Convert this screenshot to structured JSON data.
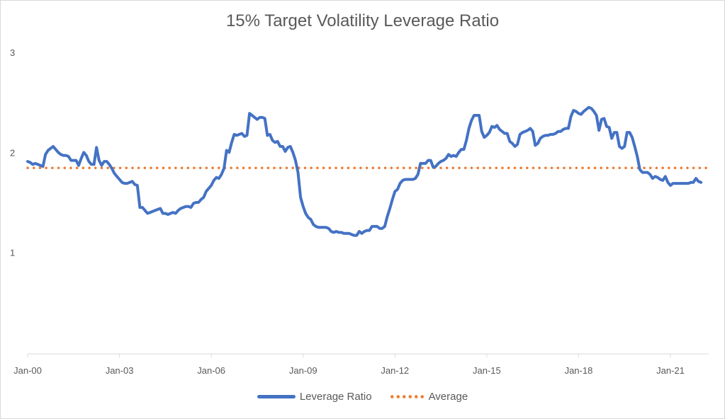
{
  "chart_data": {
    "type": "line",
    "title": "15% Target Volatility Leverage Ratio",
    "xlabel": "",
    "ylabel": "",
    "ylim": [
      0,
      3
    ],
    "yticks": [
      "1",
      "2",
      "3"
    ],
    "ytick_values": [
      1,
      2,
      3
    ],
    "x_unit": "months since Jan-00",
    "xlim": [
      0,
      267
    ],
    "xticks": [
      "Jan-00",
      "Jan-03",
      "Jan-06",
      "Jan-09",
      "Jan-12",
      "Jan-15",
      "Jan-18",
      "Jan-21"
    ],
    "xtick_values": [
      0,
      36,
      72,
      108,
      144,
      180,
      216,
      252
    ],
    "grid": false,
    "legend_position": "bottom",
    "series": [
      {
        "name": "Leverage Ratio",
        "color": "#4472c4",
        "style": "solid",
        "points": [
          [
            0,
            1.91
          ],
          [
            1,
            1.9
          ],
          [
            2,
            1.88
          ],
          [
            3,
            1.89
          ],
          [
            4,
            1.88
          ],
          [
            5,
            1.87
          ],
          [
            6,
            1.86
          ],
          [
            7,
            1.98
          ],
          [
            8,
            2.02
          ],
          [
            9,
            2.04
          ],
          [
            10,
            2.06
          ],
          [
            11,
            2.03
          ],
          [
            12,
            2.0
          ],
          [
            13,
            1.98
          ],
          [
            14,
            1.97
          ],
          [
            15,
            1.97
          ],
          [
            16,
            1.96
          ],
          [
            17,
            1.92
          ],
          [
            18,
            1.92
          ],
          [
            19,
            1.92
          ],
          [
            20,
            1.87
          ],
          [
            21,
            1.94
          ],
          [
            22,
            2.0
          ],
          [
            23,
            1.97
          ],
          [
            24,
            1.91
          ],
          [
            25,
            1.88
          ],
          [
            26,
            1.88
          ],
          [
            27,
            2.05
          ],
          [
            28,
            1.92
          ],
          [
            29,
            1.87
          ],
          [
            30,
            1.91
          ],
          [
            31,
            1.91
          ],
          [
            32,
            1.88
          ],
          [
            33,
            1.84
          ],
          [
            34,
            1.79
          ],
          [
            35,
            1.76
          ],
          [
            36,
            1.73
          ],
          [
            37,
            1.7
          ],
          [
            38,
            1.69
          ],
          [
            39,
            1.69
          ],
          [
            40,
            1.7
          ],
          [
            41,
            1.71
          ],
          [
            42,
            1.68
          ],
          [
            43,
            1.67
          ],
          [
            44,
            1.45
          ],
          [
            45,
            1.45
          ],
          [
            46,
            1.42
          ],
          [
            47,
            1.39
          ],
          [
            48,
            1.4
          ],
          [
            49,
            1.41
          ],
          [
            50,
            1.42
          ],
          [
            51,
            1.43
          ],
          [
            52,
            1.44
          ],
          [
            53,
            1.39
          ],
          [
            54,
            1.39
          ],
          [
            55,
            1.38
          ],
          [
            56,
            1.39
          ],
          [
            57,
            1.4
          ],
          [
            58,
            1.39
          ],
          [
            59,
            1.42
          ],
          [
            60,
            1.44
          ],
          [
            61,
            1.45
          ],
          [
            62,
            1.46
          ],
          [
            63,
            1.46
          ],
          [
            64,
            1.45
          ],
          [
            65,
            1.49
          ],
          [
            66,
            1.5
          ],
          [
            67,
            1.5
          ],
          [
            68,
            1.53
          ],
          [
            69,
            1.55
          ],
          [
            70,
            1.61
          ],
          [
            71,
            1.64
          ],
          [
            72,
            1.67
          ],
          [
            73,
            1.72
          ],
          [
            74,
            1.75
          ],
          [
            75,
            1.74
          ],
          [
            76,
            1.78
          ],
          [
            77,
            1.84
          ],
          [
            78,
            2.02
          ],
          [
            79,
            2.0
          ],
          [
            80,
            2.1
          ],
          [
            81,
            2.18
          ],
          [
            82,
            2.17
          ],
          [
            83,
            2.18
          ],
          [
            84,
            2.19
          ],
          [
            85,
            2.16
          ],
          [
            86,
            2.17
          ],
          [
            87,
            2.39
          ],
          [
            88,
            2.37
          ],
          [
            89,
            2.35
          ],
          [
            90,
            2.33
          ],
          [
            91,
            2.35
          ],
          [
            92,
            2.35
          ],
          [
            93,
            2.34
          ],
          [
            94,
            2.17
          ],
          [
            95,
            2.18
          ],
          [
            96,
            2.12
          ],
          [
            97,
            2.1
          ],
          [
            98,
            2.11
          ],
          [
            99,
            2.06
          ],
          [
            100,
            2.06
          ],
          [
            101,
            2.01
          ],
          [
            102,
            2.05
          ],
          [
            103,
            2.06
          ],
          [
            104,
            2.0
          ],
          [
            105,
            1.92
          ],
          [
            106,
            1.8
          ],
          [
            107,
            1.55
          ],
          [
            108,
            1.46
          ],
          [
            109,
            1.39
          ],
          [
            110,
            1.35
          ],
          [
            111,
            1.33
          ],
          [
            112,
            1.28
          ],
          [
            113,
            1.26
          ],
          [
            114,
            1.25
          ],
          [
            115,
            1.25
          ],
          [
            116,
            1.25
          ],
          [
            117,
            1.25
          ],
          [
            118,
            1.24
          ],
          [
            119,
            1.21
          ],
          [
            120,
            1.2
          ],
          [
            121,
            1.21
          ],
          [
            122,
            1.2
          ],
          [
            123,
            1.2
          ],
          [
            124,
            1.19
          ],
          [
            125,
            1.19
          ],
          [
            126,
            1.19
          ],
          [
            127,
            1.18
          ],
          [
            128,
            1.17
          ],
          [
            129,
            1.17
          ],
          [
            130,
            1.21
          ],
          [
            131,
            1.19
          ],
          [
            132,
            1.21
          ],
          [
            133,
            1.22
          ],
          [
            134,
            1.22
          ],
          [
            135,
            1.26
          ],
          [
            136,
            1.26
          ],
          [
            137,
            1.26
          ],
          [
            138,
            1.24
          ],
          [
            139,
            1.24
          ],
          [
            140,
            1.26
          ],
          [
            141,
            1.36
          ],
          [
            142,
            1.44
          ],
          [
            143,
            1.53
          ],
          [
            144,
            1.61
          ],
          [
            145,
            1.63
          ],
          [
            146,
            1.69
          ],
          [
            147,
            1.72
          ],
          [
            148,
            1.73
          ],
          [
            149,
            1.73
          ],
          [
            150,
            1.73
          ],
          [
            151,
            1.73
          ],
          [
            152,
            1.74
          ],
          [
            153,
            1.78
          ],
          [
            154,
            1.89
          ],
          [
            155,
            1.89
          ],
          [
            156,
            1.89
          ],
          [
            157,
            1.92
          ],
          [
            158,
            1.92
          ],
          [
            159,
            1.85
          ],
          [
            160,
            1.86
          ],
          [
            161,
            1.89
          ],
          [
            162,
            1.91
          ],
          [
            163,
            1.92
          ],
          [
            164,
            1.94
          ],
          [
            165,
            1.98
          ],
          [
            166,
            1.96
          ],
          [
            167,
            1.97
          ],
          [
            168,
            1.96
          ],
          [
            169,
            2.0
          ],
          [
            170,
            2.03
          ],
          [
            171,
            2.03
          ],
          [
            172,
            2.12
          ],
          [
            173,
            2.24
          ],
          [
            174,
            2.32
          ],
          [
            175,
            2.37
          ],
          [
            176,
            2.37
          ],
          [
            177,
            2.37
          ],
          [
            178,
            2.21
          ],
          [
            179,
            2.15
          ],
          [
            180,
            2.17
          ],
          [
            181,
            2.2
          ],
          [
            182,
            2.26
          ],
          [
            183,
            2.25
          ],
          [
            184,
            2.27
          ],
          [
            185,
            2.23
          ],
          [
            186,
            2.21
          ],
          [
            187,
            2.19
          ],
          [
            188,
            2.19
          ],
          [
            189,
            2.11
          ],
          [
            190,
            2.09
          ],
          [
            191,
            2.06
          ],
          [
            192,
            2.08
          ],
          [
            193,
            2.18
          ],
          [
            194,
            2.2
          ],
          [
            195,
            2.21
          ],
          [
            196,
            2.22
          ],
          [
            197,
            2.24
          ],
          [
            198,
            2.21
          ],
          [
            199,
            2.07
          ],
          [
            200,
            2.09
          ],
          [
            201,
            2.14
          ],
          [
            202,
            2.16
          ],
          [
            203,
            2.17
          ],
          [
            204,
            2.17
          ],
          [
            205,
            2.18
          ],
          [
            206,
            2.18
          ],
          [
            207,
            2.19
          ],
          [
            208,
            2.21
          ],
          [
            209,
            2.21
          ],
          [
            210,
            2.23
          ],
          [
            211,
            2.24
          ],
          [
            212,
            2.24
          ],
          [
            213,
            2.36
          ],
          [
            214,
            2.42
          ],
          [
            215,
            2.41
          ],
          [
            216,
            2.39
          ],
          [
            217,
            2.38
          ],
          [
            218,
            2.41
          ],
          [
            219,
            2.43
          ],
          [
            220,
            2.45
          ],
          [
            221,
            2.44
          ],
          [
            222,
            2.41
          ],
          [
            223,
            2.37
          ],
          [
            224,
            2.22
          ],
          [
            225,
            2.33
          ],
          [
            226,
            2.34
          ],
          [
            227,
            2.26
          ],
          [
            228,
            2.25
          ],
          [
            229,
            2.14
          ],
          [
            230,
            2.2
          ],
          [
            231,
            2.2
          ],
          [
            232,
            2.06
          ],
          [
            233,
            2.04
          ],
          [
            234,
            2.06
          ],
          [
            235,
            2.2
          ],
          [
            236,
            2.2
          ],
          [
            237,
            2.15
          ],
          [
            238,
            2.06
          ],
          [
            239,
            1.96
          ],
          [
            240,
            1.83
          ],
          [
            241,
            1.8
          ],
          [
            242,
            1.8
          ],
          [
            243,
            1.8
          ],
          [
            244,
            1.78
          ],
          [
            245,
            1.74
          ],
          [
            246,
            1.76
          ],
          [
            247,
            1.75
          ],
          [
            248,
            1.73
          ],
          [
            249,
            1.72
          ],
          [
            250,
            1.76
          ],
          [
            251,
            1.7
          ],
          [
            252,
            1.67
          ],
          [
            253,
            1.69
          ],
          [
            254,
            1.69
          ],
          [
            255,
            1.69
          ],
          [
            256,
            1.69
          ],
          [
            257,
            1.69
          ],
          [
            258,
            1.69
          ],
          [
            259,
            1.69
          ],
          [
            260,
            1.7
          ],
          [
            261,
            1.7
          ],
          [
            262,
            1.74
          ],
          [
            263,
            1.71
          ],
          [
            264,
            1.7
          ]
        ]
      },
      {
        "name": "Average",
        "color": "#ed7d31",
        "style": "dotted",
        "value": 1.845
      }
    ]
  }
}
